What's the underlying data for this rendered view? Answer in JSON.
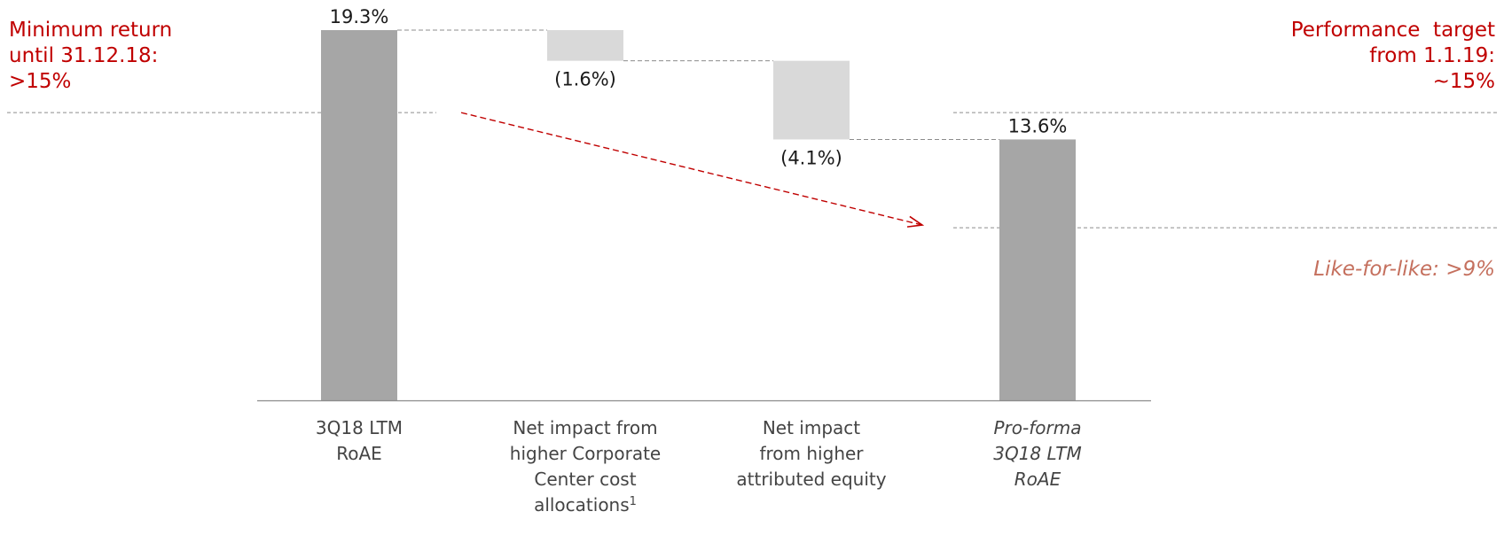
{
  "colors": {
    "total_bar": "#a6a6a6",
    "delta_bar": "#d9d9d9",
    "accent_red": "#c00000",
    "accent_muted": "#c5705e",
    "text": "#1a1a1a",
    "subtext": "#444444",
    "guide_line": "#8c8c8c"
  },
  "annotations": {
    "min_return": [
      "Minimum return",
      "until 31.12.18:",
      ">15%"
    ],
    "perf_target": [
      "Performance  target",
      "from 1.1.19:",
      "~15%"
    ],
    "like_for_like": "Like-for-like: >9%"
  },
  "chart_data": {
    "type": "bar",
    "subtype": "waterfall",
    "unit": "%",
    "ylim": [
      0,
      19.3
    ],
    "categories": [
      {
        "lines": [
          "3Q18 LTM",
          "RoAE"
        ],
        "italic": false
      },
      {
        "lines": [
          "Net impact from",
          "higher Corporate",
          "Center cost",
          "allocations"
        ],
        "italic": false,
        "footnote": "1"
      },
      {
        "lines": [
          "Net impact",
          "from higher",
          "attributed equity"
        ],
        "italic": false
      },
      {
        "lines": [
          "Pro-forma",
          "3Q18 LTM",
          "RoAE"
        ],
        "italic": true
      }
    ],
    "bars": [
      {
        "kind": "total",
        "start": 0,
        "end": 19.3,
        "label": "19.3%"
      },
      {
        "kind": "delta",
        "start": 19.3,
        "end": 17.7,
        "label": "(1.6%)"
      },
      {
        "kind": "delta",
        "start": 17.7,
        "end": 13.6,
        "label": "(4.1%)"
      },
      {
        "kind": "total",
        "start": 0,
        "end": 13.6,
        "label": "13.6%"
      }
    ],
    "reference_lines": [
      {
        "name": "minimum_return",
        "value": 15
      },
      {
        "name": "like_for_like",
        "value": 9
      }
    ],
    "trend_arrow": {
      "from_value": 15,
      "to_value": 9,
      "style": "dashed"
    },
    "legend": "none",
    "grid": false
  }
}
